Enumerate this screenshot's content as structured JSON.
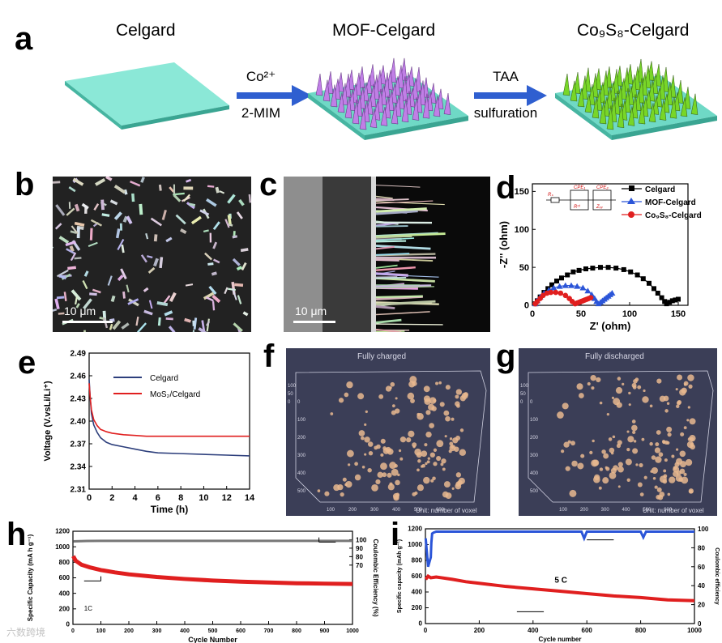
{
  "panels": {
    "a": {
      "label": "a",
      "titles": [
        "Celgard",
        "MOF-Celgard",
        "Co₉S₈-Celgard"
      ],
      "arrow1": {
        "top": "Co²⁺",
        "bottom": "2-MIM"
      },
      "arrow2": {
        "top": "TAA",
        "bottom": "sulfuration"
      }
    },
    "b": {
      "label": "b",
      "scale": "10 μm"
    },
    "c": {
      "label": "c",
      "scale": "10 μm"
    },
    "d": {
      "label": "d"
    },
    "e": {
      "label": "e"
    },
    "f": {
      "label": "f",
      "title": "Fully charged",
      "unit": "Unit: number of voxel"
    },
    "g": {
      "label": "g",
      "title": "Fully discharged",
      "unit": "Unit: number of voxel"
    },
    "h": {
      "label": "h"
    },
    "i": {
      "label": "i"
    }
  },
  "voxel_ticks": {
    "z": [
      "100",
      "50",
      "0"
    ],
    "y": [
      "0",
      "100",
      "200",
      "300",
      "400",
      "500"
    ],
    "x": [
      "100",
      "200",
      "300",
      "400",
      "500",
      "600"
    ]
  },
  "colors": {
    "celgard": "#5ed3be",
    "mof": "#c07fe6",
    "cos": "#78d628",
    "arrow": "#2f5fd0",
    "red": "#e01f1f",
    "blue": "#2b55d8",
    "navy": "#2d3f7c"
  },
  "watermark": "六数跨境",
  "chart_data": [
    {
      "id": "d",
      "type": "scatter",
      "title": "",
      "xlabel": "Z' (ohm)",
      "ylabel": "-Z'' (ohm)",
      "xlim": [
        0,
        160
      ],
      "ylim": [
        0,
        160
      ],
      "xticks": [
        0,
        50,
        100,
        150
      ],
      "yticks": [
        0,
        50,
        100,
        150
      ],
      "circuit": [
        "Rₛ",
        "CPE₁",
        "Rᶜᵗ",
        "CPE₂",
        "Zᵥᵥ"
      ],
      "series": [
        {
          "name": "Celgard",
          "marker": "square",
          "color": "#000000",
          "x": [
            3,
            5,
            8,
            12,
            16,
            20,
            25,
            30,
            36,
            42,
            48,
            55,
            62,
            70,
            78,
            86,
            94,
            101,
            108,
            114,
            120,
            125,
            129,
            133,
            136,
            138,
            141,
            144,
            147,
            150
          ],
          "y": [
            2,
            6,
            11,
            17,
            22,
            27,
            32,
            36,
            40,
            44,
            46,
            48,
            49,
            50,
            50,
            49,
            47,
            44,
            40,
            35,
            29,
            22,
            16,
            10,
            5,
            2,
            4,
            6,
            7,
            8
          ]
        },
        {
          "name": "MOF-Celgard",
          "marker": "triangle",
          "color": "#2b55d8",
          "x": [
            3,
            5,
            8,
            12,
            17,
            22,
            28,
            34,
            40,
            46,
            52,
            57,
            61,
            64,
            66,
            68,
            70,
            72,
            74,
            76,
            78,
            80,
            82
          ],
          "y": [
            2,
            6,
            11,
            16,
            20,
            23,
            25,
            26,
            26,
            25,
            23,
            19,
            14,
            9,
            5,
            2,
            4,
            6,
            8,
            10,
            12,
            14,
            16
          ]
        },
        {
          "name": "Co₉S₈-Celgard",
          "marker": "circle",
          "color": "#e01f1f",
          "x": [
            3,
            5,
            8,
            11,
            15,
            19,
            24,
            29,
            34,
            38,
            41,
            44,
            46,
            48,
            50,
            52,
            54,
            56,
            58,
            60
          ],
          "y": [
            2,
            5,
            9,
            13,
            16,
            17,
            17,
            16,
            13,
            9,
            5,
            2,
            3,
            4,
            5,
            6,
            7,
            8,
            9,
            10
          ]
        }
      ]
    },
    {
      "id": "e",
      "type": "line",
      "title": "",
      "xlabel": "Time (h)",
      "ylabel": "Voltage (V.vsLi/Li⁺)",
      "xlim": [
        0,
        14
      ],
      "ylim": [
        2.31,
        2.49
      ],
      "xticks": [
        0,
        2,
        4,
        6,
        8,
        10,
        12,
        14
      ],
      "yticks": [
        2.31,
        2.34,
        2.37,
        2.4,
        2.43,
        2.46,
        2.49
      ],
      "series": [
        {
          "name": "Celgard",
          "color": "#2d3f7c",
          "x": [
            0,
            0.1,
            0.2,
            0.4,
            0.7,
            1,
            1.5,
            2,
            3,
            4,
            5,
            6,
            8,
            10,
            12,
            14
          ],
          "y": [
            2.455,
            2.43,
            2.41,
            2.395,
            2.385,
            2.378,
            2.372,
            2.369,
            2.366,
            2.363,
            2.36,
            2.358,
            2.357,
            2.356,
            2.355,
            2.354
          ]
        },
        {
          "name": "MoS₂/Celgard",
          "color": "#e01f1f",
          "x": [
            0,
            0.1,
            0.2,
            0.4,
            0.7,
            1,
            1.5,
            2,
            3,
            4,
            5,
            6,
            8,
            10,
            12,
            14
          ],
          "y": [
            2.45,
            2.43,
            2.415,
            2.402,
            2.394,
            2.389,
            2.386,
            2.384,
            2.382,
            2.381,
            2.38,
            2.38,
            2.38,
            2.38,
            2.38,
            2.38
          ]
        }
      ]
    },
    {
      "id": "h",
      "type": "line",
      "title": "",
      "xlabel": "Cycle Number",
      "ylabel": "Specific Capacity (mA h g⁻¹)",
      "y2label": "Coulombic Efficiency (%)",
      "annotation": "1C",
      "xlim": [
        0,
        1000
      ],
      "ylim": [
        0,
        1200
      ],
      "y2lim": [
        0,
        110
      ],
      "xticks": [
        0,
        100,
        200,
        300,
        400,
        500,
        600,
        700,
        800,
        900,
        1000
      ],
      "yticks": [
        0,
        200,
        400,
        600,
        800,
        1000,
        1200
      ],
      "y2ticks": [
        70,
        80,
        90,
        100
      ],
      "series": [
        {
          "name": "capacity",
          "axis": "left",
          "color": "#e01f1f",
          "x": [
            1,
            10,
            30,
            60,
            100,
            150,
            200,
            300,
            400,
            500,
            600,
            700,
            800,
            900,
            1000
          ],
          "y": [
            880,
            820,
            770,
            735,
            700,
            670,
            645,
            610,
            585,
            565,
            550,
            540,
            530,
            525,
            520
          ]
        },
        {
          "name": "coulombic efficiency",
          "axis": "right",
          "color": "#777777",
          "x": [
            1,
            50,
            100,
            200,
            400,
            600,
            800,
            1000
          ],
          "y": [
            98,
            98.5,
            98.6,
            98.6,
            98.6,
            98.6,
            98.6,
            98.6
          ]
        }
      ]
    },
    {
      "id": "i",
      "type": "line",
      "title": "",
      "xlabel": "Cycle number",
      "ylabel": "Specific capacity (mAh g⁻¹)",
      "y2label": "Coulombic efficiency",
      "annotation": "5 C",
      "xlim": [
        0,
        1000
      ],
      "ylim": [
        0,
        1200
      ],
      "y2lim": [
        0,
        100
      ],
      "xticks": [
        0,
        200,
        400,
        600,
        800,
        1000
      ],
      "yticks": [
        0,
        200,
        400,
        600,
        800,
        1000,
        1200
      ],
      "y2ticks": [
        0,
        20,
        40,
        60,
        80,
        100
      ],
      "series": [
        {
          "name": "capacity",
          "axis": "left",
          "color": "#e01f1f",
          "x": [
            1,
            10,
            20,
            40,
            60,
            100,
            150,
            200,
            300,
            400,
            500,
            600,
            700,
            800,
            900,
            1000
          ],
          "y": [
            560,
            600,
            580,
            590,
            580,
            560,
            530,
            510,
            470,
            440,
            410,
            380,
            350,
            330,
            300,
            290
          ]
        },
        {
          "name": "coulombic efficiency",
          "axis": "right",
          "color": "#2b55d8",
          "x": [
            1,
            10,
            20,
            22,
            25,
            30,
            40,
            80,
            200,
            400,
            580,
            590,
            600,
            800,
            810,
            820,
            1000
          ],
          "y": [
            90,
            60,
            70,
            85,
            95,
            96,
            97,
            97,
            97,
            97,
            97,
            90,
            97,
            97,
            91,
            97,
            97
          ]
        }
      ]
    }
  ]
}
